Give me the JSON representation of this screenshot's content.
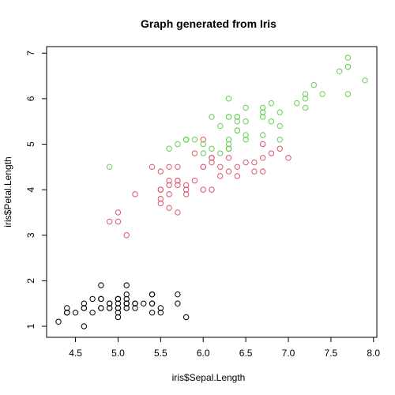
{
  "chart_data": {
    "type": "scatter",
    "title": "Graph generated from Iris",
    "xlabel": "iris$Sepal.Length",
    "ylabel": "iris$Petal.Length",
    "xlim": [
      4.3,
      7.9
    ],
    "ylim": [
      1.0,
      6.9
    ],
    "xticks": [
      "4.5",
      "5.0",
      "5.5",
      "6.0",
      "6.5",
      "7.0",
      "7.5",
      "8.0"
    ],
    "yticks": [
      "1",
      "2",
      "3",
      "4",
      "5",
      "6",
      "7"
    ],
    "grid": false,
    "legend": "none",
    "series": [
      {
        "color": "#000000",
        "points": [
          [
            5.1,
            1.4
          ],
          [
            4.9,
            1.4
          ],
          [
            4.7,
            1.3
          ],
          [
            4.6,
            1.5
          ],
          [
            5.0,
            1.4
          ],
          [
            5.4,
            1.7
          ],
          [
            4.6,
            1.4
          ],
          [
            5.0,
            1.5
          ],
          [
            4.4,
            1.4
          ],
          [
            4.9,
            1.5
          ],
          [
            5.4,
            1.5
          ],
          [
            4.8,
            1.6
          ],
          [
            4.8,
            1.4
          ],
          [
            4.3,
            1.1
          ],
          [
            5.8,
            1.2
          ],
          [
            5.7,
            1.5
          ],
          [
            5.4,
            1.3
          ],
          [
            5.1,
            1.4
          ],
          [
            5.7,
            1.7
          ],
          [
            5.1,
            1.5
          ],
          [
            5.4,
            1.7
          ],
          [
            5.1,
            1.5
          ],
          [
            4.6,
            1.0
          ],
          [
            5.1,
            1.7
          ],
          [
            4.8,
            1.9
          ],
          [
            5.0,
            1.6
          ],
          [
            5.0,
            1.6
          ],
          [
            5.2,
            1.5
          ],
          [
            5.2,
            1.4
          ],
          [
            4.7,
            1.6
          ],
          [
            4.8,
            1.6
          ],
          [
            5.4,
            1.5
          ],
          [
            5.2,
            1.5
          ],
          [
            5.5,
            1.4
          ],
          [
            4.9,
            1.5
          ],
          [
            5.0,
            1.2
          ],
          [
            5.5,
            1.3
          ],
          [
            4.9,
            1.4
          ],
          [
            4.4,
            1.3
          ],
          [
            5.1,
            1.5
          ],
          [
            5.0,
            1.3
          ],
          [
            4.5,
            1.3
          ],
          [
            4.4,
            1.3
          ],
          [
            5.0,
            1.6
          ],
          [
            5.1,
            1.9
          ],
          [
            4.8,
            1.4
          ],
          [
            5.1,
            1.6
          ],
          [
            4.6,
            1.4
          ],
          [
            5.3,
            1.5
          ],
          [
            5.0,
            1.4
          ]
        ]
      },
      {
        "color": "#DF536B",
        "points": [
          [
            7.0,
            4.7
          ],
          [
            6.4,
            4.5
          ],
          [
            6.9,
            4.9
          ],
          [
            5.5,
            4.0
          ],
          [
            6.5,
            4.6
          ],
          [
            5.7,
            4.5
          ],
          [
            6.3,
            4.7
          ],
          [
            4.9,
            3.3
          ],
          [
            6.6,
            4.6
          ],
          [
            5.2,
            3.9
          ],
          [
            5.0,
            3.5
          ],
          [
            5.9,
            4.2
          ],
          [
            6.0,
            4.0
          ],
          [
            6.1,
            4.7
          ],
          [
            5.6,
            3.6
          ],
          [
            6.7,
            4.4
          ],
          [
            5.6,
            4.5
          ],
          [
            5.8,
            4.1
          ],
          [
            6.2,
            4.5
          ],
          [
            5.6,
            3.9
          ],
          [
            5.9,
            4.8
          ],
          [
            6.1,
            4.0
          ],
          [
            6.3,
            4.9
          ],
          [
            6.1,
            4.7
          ],
          [
            6.4,
            4.3
          ],
          [
            6.6,
            4.4
          ],
          [
            6.8,
            4.8
          ],
          [
            6.7,
            5.0
          ],
          [
            6.0,
            4.5
          ],
          [
            5.7,
            3.5
          ],
          [
            5.5,
            3.8
          ],
          [
            5.5,
            3.7
          ],
          [
            5.8,
            3.9
          ],
          [
            6.0,
            5.1
          ],
          [
            5.4,
            4.5
          ],
          [
            6.0,
            4.5
          ],
          [
            6.7,
            4.7
          ],
          [
            6.3,
            4.4
          ],
          [
            5.6,
            4.1
          ],
          [
            5.5,
            4.0
          ],
          [
            5.5,
            4.4
          ],
          [
            6.1,
            4.6
          ],
          [
            5.8,
            4.0
          ],
          [
            5.0,
            3.3
          ],
          [
            5.6,
            4.2
          ],
          [
            5.7,
            4.2
          ],
          [
            5.7,
            4.2
          ],
          [
            6.2,
            4.3
          ],
          [
            5.1,
            3.0
          ],
          [
            5.7,
            4.1
          ]
        ]
      },
      {
        "color": "#61D04F",
        "points": [
          [
            6.3,
            6.0
          ],
          [
            5.8,
            5.1
          ],
          [
            7.1,
            5.9
          ],
          [
            6.3,
            5.6
          ],
          [
            6.5,
            5.8
          ],
          [
            7.6,
            6.6
          ],
          [
            4.9,
            4.5
          ],
          [
            7.3,
            6.3
          ],
          [
            6.7,
            5.8
          ],
          [
            7.2,
            6.1
          ],
          [
            6.5,
            5.1
          ],
          [
            6.4,
            5.3
          ],
          [
            6.8,
            5.5
          ],
          [
            5.7,
            5.0
          ],
          [
            5.8,
            5.1
          ],
          [
            6.4,
            5.3
          ],
          [
            6.5,
            5.5
          ],
          [
            7.7,
            6.7
          ],
          [
            7.7,
            6.9
          ],
          [
            6.0,
            5.0
          ],
          [
            6.9,
            5.7
          ],
          [
            5.6,
            4.9
          ],
          [
            7.7,
            6.7
          ],
          [
            6.3,
            4.9
          ],
          [
            6.7,
            5.7
          ],
          [
            7.2,
            6.0
          ],
          [
            6.2,
            4.8
          ],
          [
            6.1,
            4.9
          ],
          [
            6.4,
            5.6
          ],
          [
            7.2,
            5.8
          ],
          [
            7.4,
            6.1
          ],
          [
            7.9,
            6.4
          ],
          [
            6.4,
            5.6
          ],
          [
            6.3,
            5.1
          ],
          [
            6.1,
            5.6
          ],
          [
            7.7,
            6.1
          ],
          [
            6.3,
            5.6
          ],
          [
            6.4,
            5.5
          ],
          [
            6.0,
            4.8
          ],
          [
            6.9,
            5.4
          ],
          [
            6.7,
            5.6
          ],
          [
            6.9,
            5.1
          ],
          [
            5.8,
            5.1
          ],
          [
            6.8,
            5.9
          ],
          [
            6.7,
            5.7
          ],
          [
            6.7,
            5.2
          ],
          [
            6.3,
            5.0
          ],
          [
            6.5,
            5.2
          ],
          [
            6.2,
            5.4
          ],
          [
            5.9,
            5.1
          ]
        ]
      }
    ]
  }
}
